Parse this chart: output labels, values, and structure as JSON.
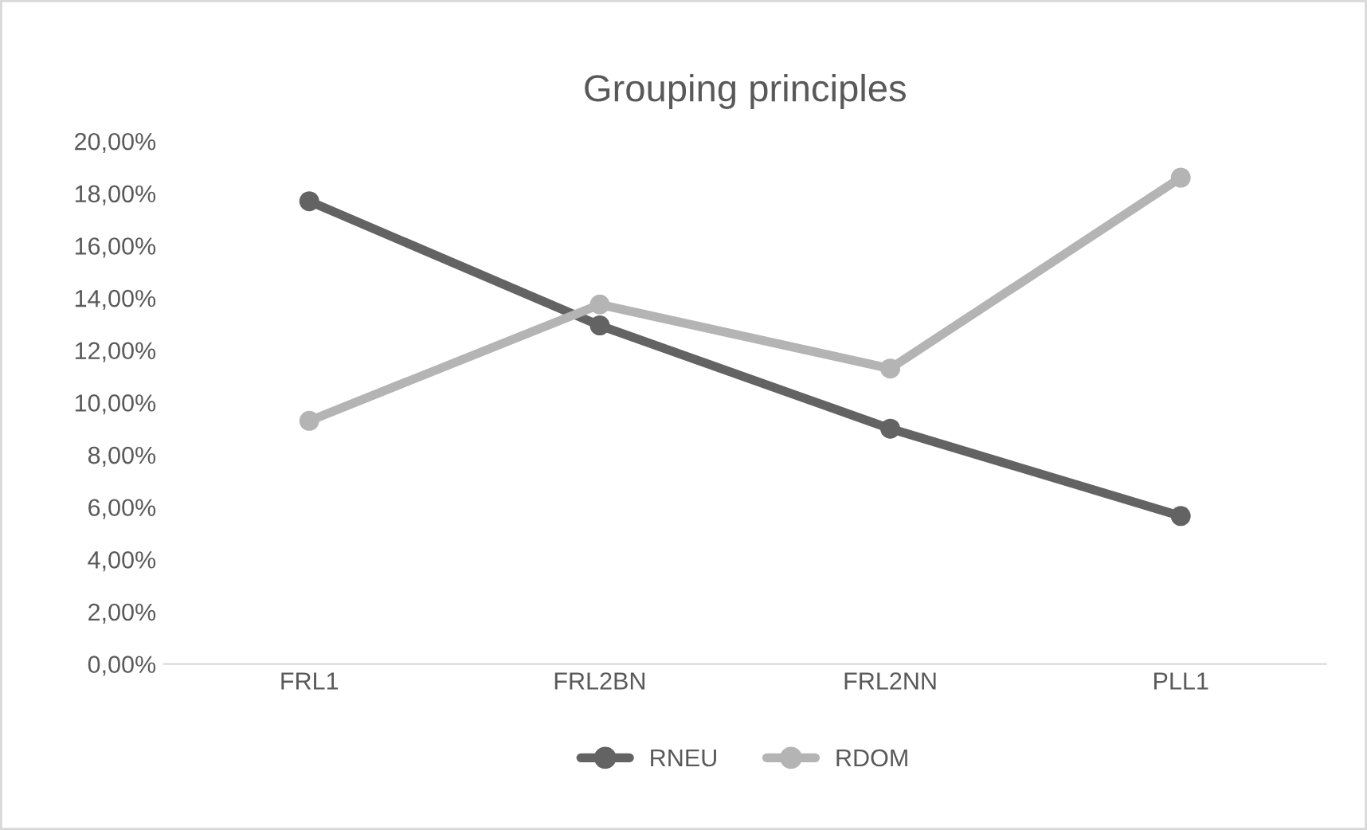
{
  "chart_data": {
    "type": "line",
    "title": "Grouping principles",
    "categories": [
      "FRL1",
      "FRL2BN",
      "FRL2NN",
      "PLL1"
    ],
    "series": [
      {
        "name": "RNEU",
        "color": "#636363",
        "values": [
          17.7,
          12.95,
          9.0,
          5.66
        ]
      },
      {
        "name": "RDOM",
        "color": "#b4b4b4",
        "values": [
          9.3,
          13.75,
          11.3,
          18.6
        ]
      }
    ],
    "ylim": [
      0,
      20
    ],
    "yticks": [
      {
        "value": 0,
        "label": "0,00%"
      },
      {
        "value": 2,
        "label": "2,00%"
      },
      {
        "value": 4,
        "label": "4,00%"
      },
      {
        "value": 6,
        "label": "6,00%"
      },
      {
        "value": 8,
        "label": "8,00%"
      },
      {
        "value": 10,
        "label": "10,00%"
      },
      {
        "value": 12,
        "label": "12,00%"
      },
      {
        "value": 14,
        "label": "14,00%"
      },
      {
        "value": 16,
        "label": "16,00%"
      },
      {
        "value": 18,
        "label": "18,00%"
      },
      {
        "value": 20,
        "label": "20,00%"
      }
    ],
    "grid": false,
    "legend": "bottom",
    "marker": "circle",
    "line_style": "solid"
  }
}
